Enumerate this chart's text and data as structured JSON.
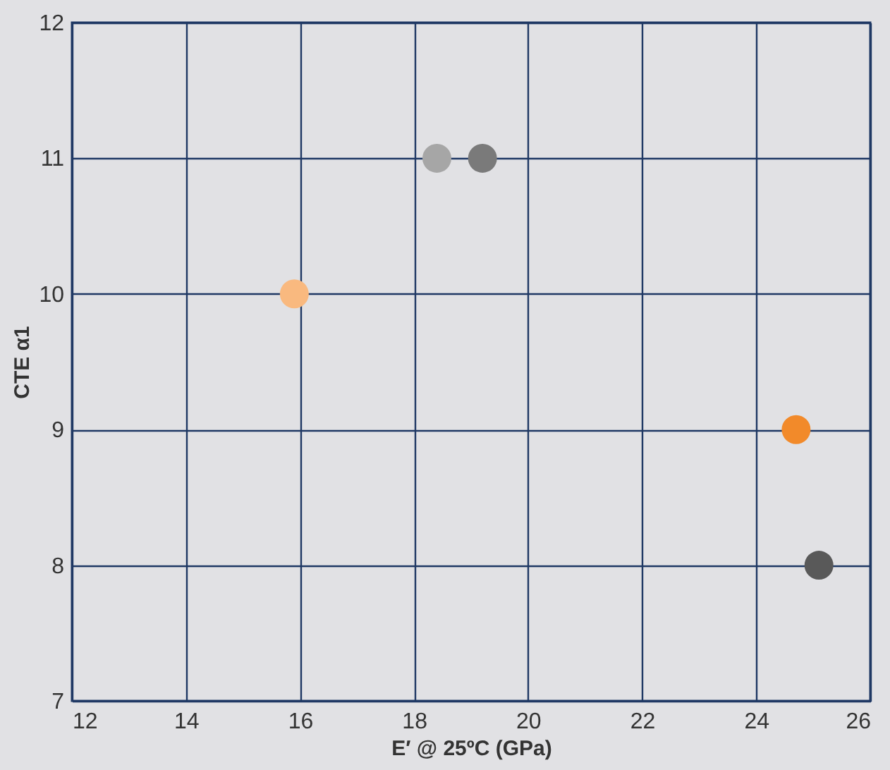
{
  "chart_data": {
    "type": "scatter",
    "xlabel": "E′ @ 25ºC (GPa)",
    "ylabel": "CTE α1",
    "x": [
      15.9,
      18.4,
      19.2,
      24.7,
      25.1
    ],
    "values": [
      10,
      11,
      11,
      9,
      8
    ],
    "colors": [
      "#f9b97f",
      "#a6a6a6",
      "#7a7a7a",
      "#f28a2a",
      "#595959"
    ],
    "xlim": [
      12,
      26
    ],
    "xticks": [
      12,
      14,
      16,
      18,
      20,
      22,
      24,
      26
    ],
    "ylim": [
      7,
      12
    ],
    "yticks": [
      7,
      8,
      9,
      10,
      11,
      12
    ],
    "grid": true,
    "marker": "circle"
  }
}
